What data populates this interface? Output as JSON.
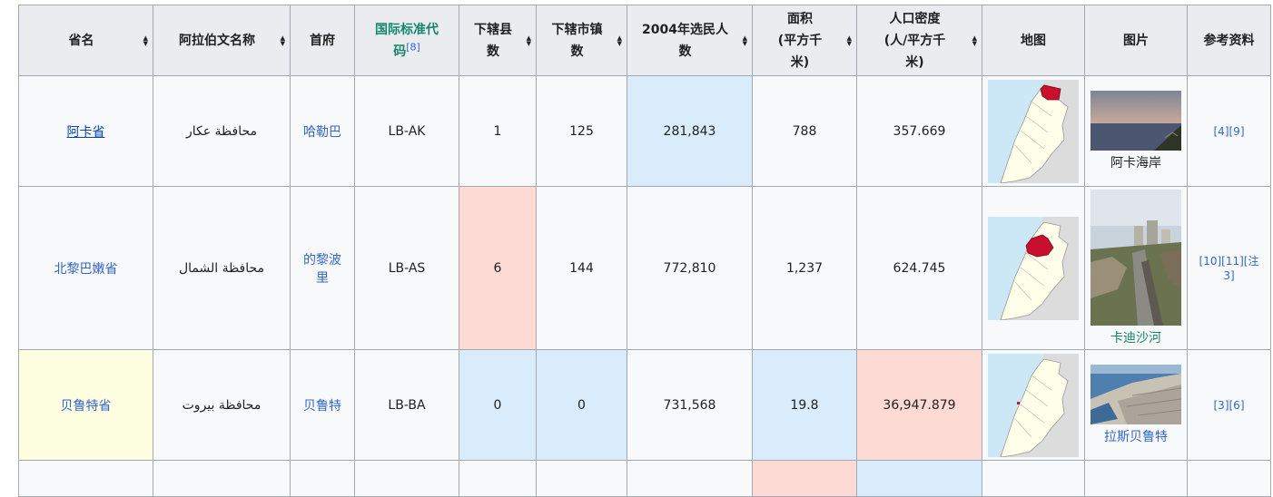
{
  "headers": {
    "province": "省名",
    "arabic": "阿拉伯文名称",
    "capital": "首府",
    "iso_line1": "国际标准代",
    "iso_line2": "码",
    "iso_ref": "[8]",
    "districts_line1": "下辖县",
    "districts_line2": "数",
    "towns_line1": "下辖市镇",
    "towns_line2": "数",
    "voters_line1": "2004年选民人",
    "voters_line2": "数",
    "area_line1": "面积",
    "area_line2": "(平方千",
    "area_line3": "米)",
    "density_line1": "人口密度",
    "density_line2": "(人/平方千",
    "density_line3": "米)",
    "map": "地图",
    "image": "图片",
    "refs": "参考资料"
  },
  "rows": [
    {
      "province": "阿卡省",
      "arabic": "محافظة عكار",
      "capital": "哈勒巴",
      "iso": "LB-AK",
      "districts": "1",
      "towns": "125",
      "voters": "281,843",
      "area": "788",
      "density": "357.669",
      "caption": "阿卡海岸",
      "refs": "[4][9]"
    },
    {
      "province": "北黎巴嫩省",
      "arabic": "محافظة الشمال",
      "capital_line1": "的黎波",
      "capital_line2": "里",
      "iso": "LB-AS",
      "districts": "6",
      "towns": "144",
      "voters": "772,810",
      "area": "1,237",
      "density": "624.745",
      "caption": "卡迪沙河",
      "refs": "[10][11][注 3]"
    },
    {
      "province": "贝鲁特省",
      "arabic": "محافظة بيروت",
      "capital": "贝鲁特",
      "iso": "LB-BA",
      "districts": "0",
      "towns": "0",
      "voters": "731,568",
      "area": "19.8",
      "density": "36,947.879",
      "caption": "拉斯贝鲁特",
      "refs": "[3][6]"
    }
  ],
  "colors": {
    "header_bg": "#eaecf0",
    "cell_bg": "#f8f9fa",
    "highlight_blue": "#d8ecfb",
    "highlight_pink": "#fddad3",
    "highlight_yellow": "#fefee0",
    "region_red": "#c8102e",
    "link_blue": "#3366cc",
    "link_green": "#14866d"
  }
}
